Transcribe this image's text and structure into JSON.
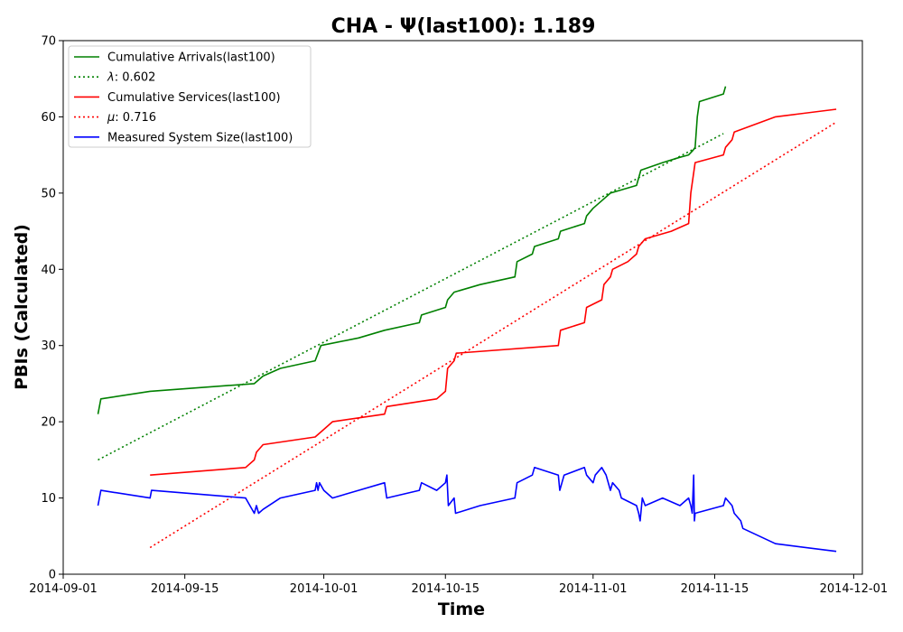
{
  "chart_data": {
    "type": "line",
    "title": "CHA -  Ψ(last100): 1.189",
    "xlabel": "Time",
    "ylabel": "PBIs (Calculated)",
    "xlim": [
      "2014-09-01",
      "2014-12-02"
    ],
    "ylim": [
      0,
      70
    ],
    "x_ticks": [
      "2014-09-01",
      "2014-09-15",
      "2014-10-01",
      "2014-10-15",
      "2014-11-01",
      "2014-11-15",
      "2014-12-01"
    ],
    "y_ticks": [
      0,
      10,
      20,
      30,
      40,
      50,
      60,
      70
    ],
    "grid": false,
    "legend_position": "top-left",
    "series": [
      {
        "name": "Cumulative Arrivals(last100)",
        "color": "#008000",
        "style": "solid",
        "points": [
          [
            "2014-09-05",
            21
          ],
          [
            "2014-09-05T08:00",
            23
          ],
          [
            "2014-09-11",
            24
          ],
          [
            "2014-09-23",
            25
          ],
          [
            "2014-09-24",
            26
          ],
          [
            "2014-09-26",
            27
          ],
          [
            "2014-09-30",
            28
          ],
          [
            "2014-09-30T08:00",
            29
          ],
          [
            "2014-09-30T16:00",
            30
          ],
          [
            "2014-10-05",
            31
          ],
          [
            "2014-10-08",
            32
          ],
          [
            "2014-10-12",
            33
          ],
          [
            "2014-10-12T06:00",
            34
          ],
          [
            "2014-10-15",
            35
          ],
          [
            "2014-10-15T06:00",
            36
          ],
          [
            "2014-10-16",
            37
          ],
          [
            "2014-10-19",
            38
          ],
          [
            "2014-10-23",
            39
          ],
          [
            "2014-10-23T06:00",
            41
          ],
          [
            "2014-10-25",
            42
          ],
          [
            "2014-10-25T06:00",
            43
          ],
          [
            "2014-10-28",
            44
          ],
          [
            "2014-10-28T06:00",
            45
          ],
          [
            "2014-10-31",
            46
          ],
          [
            "2014-10-31T06:00",
            47
          ],
          [
            "2014-11-01",
            48
          ],
          [
            "2014-11-02",
            49
          ],
          [
            "2014-11-03",
            50
          ],
          [
            "2014-11-06",
            51
          ],
          [
            "2014-11-06T06:00",
            52
          ],
          [
            "2014-11-06T12:00",
            53
          ],
          [
            "2014-11-09",
            54
          ],
          [
            "2014-11-11",
            54.7
          ],
          [
            "2014-11-12",
            55
          ],
          [
            "2014-11-12T12:00",
            55.6
          ],
          [
            "2014-11-12T18:00",
            56
          ],
          [
            "2014-11-13",
            60
          ],
          [
            "2014-11-13T06:00",
            62
          ],
          [
            "2014-11-16",
            63
          ],
          [
            "2014-11-16T06:00",
            64
          ]
        ]
      },
      {
        "name": "λ: 0.602",
        "legend_symbol": "λ",
        "legend_value": ": 0.602",
        "color": "#008000",
        "style": "dotted",
        "points": [
          [
            "2014-09-05",
            15
          ],
          [
            "2014-11-16",
            57.8
          ]
        ]
      },
      {
        "name": "Cumulative Services(last100)",
        "color": "#ff0000",
        "style": "solid",
        "points": [
          [
            "2014-09-11",
            13
          ],
          [
            "2014-09-22",
            14
          ],
          [
            "2014-09-23",
            15
          ],
          [
            "2014-09-23T06:00",
            16
          ],
          [
            "2014-09-24",
            17
          ],
          [
            "2014-09-30",
            18
          ],
          [
            "2014-10-01",
            19
          ],
          [
            "2014-10-02",
            20
          ],
          [
            "2014-10-08",
            21
          ],
          [
            "2014-10-08T06:00",
            22
          ],
          [
            "2014-10-14",
            23
          ],
          [
            "2014-10-15",
            24
          ],
          [
            "2014-10-15T06:00",
            27
          ],
          [
            "2014-10-16",
            28
          ],
          [
            "2014-10-16T06:00",
            29
          ],
          [
            "2014-10-28",
            30
          ],
          [
            "2014-10-28T06:00",
            32
          ],
          [
            "2014-10-31",
            33
          ],
          [
            "2014-10-31T06:00",
            35
          ],
          [
            "2014-11-02",
            36
          ],
          [
            "2014-11-02T06:00",
            38
          ],
          [
            "2014-11-03",
            39
          ],
          [
            "2014-11-03T06:00",
            40
          ],
          [
            "2014-11-05",
            41
          ],
          [
            "2014-11-06",
            42
          ],
          [
            "2014-11-06T06:00",
            43
          ],
          [
            "2014-11-07",
            44
          ],
          [
            "2014-11-10",
            45
          ],
          [
            "2014-11-12",
            46
          ],
          [
            "2014-11-12T06:00",
            50
          ],
          [
            "2014-11-12T12:00",
            52
          ],
          [
            "2014-11-12T18:00",
            54
          ],
          [
            "2014-11-16",
            55
          ],
          [
            "2014-11-16T06:00",
            56
          ],
          [
            "2014-11-17",
            57
          ],
          [
            "2014-11-17T06:00",
            58
          ],
          [
            "2014-11-22",
            60
          ],
          [
            "2014-11-29",
            61
          ]
        ]
      },
      {
        "name": "μ: 0.716",
        "legend_symbol": "μ",
        "legend_value": ": 0.716",
        "color": "#ff0000",
        "style": "dotted",
        "points": [
          [
            "2014-09-11",
            3.5
          ],
          [
            "2014-11-29",
            59.3
          ]
        ]
      },
      {
        "name": "Measured System Size(last100)",
        "color": "#0000ff",
        "style": "solid",
        "points": [
          [
            "2014-09-05",
            9
          ],
          [
            "2014-09-05T08:00",
            11
          ],
          [
            "2014-09-11",
            10
          ],
          [
            "2014-09-11T04:00",
            11
          ],
          [
            "2014-09-22",
            10
          ],
          [
            "2014-09-23",
            8
          ],
          [
            "2014-09-23T06:00",
            9
          ],
          [
            "2014-09-23T12:00",
            8
          ],
          [
            "2014-09-24",
            8.5
          ],
          [
            "2014-09-26",
            10
          ],
          [
            "2014-09-30",
            11
          ],
          [
            "2014-09-30T04:00",
            12
          ],
          [
            "2014-09-30T08:00",
            11
          ],
          [
            "2014-09-30T12:00",
            12
          ],
          [
            "2014-10-01",
            11
          ],
          [
            "2014-10-02",
            10
          ],
          [
            "2014-10-05",
            11
          ],
          [
            "2014-10-08",
            12
          ],
          [
            "2014-10-08T06:00",
            10
          ],
          [
            "2014-10-12",
            11
          ],
          [
            "2014-10-12T06:00",
            12
          ],
          [
            "2014-10-14",
            11
          ],
          [
            "2014-10-15",
            12
          ],
          [
            "2014-10-15T04:00",
            13
          ],
          [
            "2014-10-15T08:00",
            9
          ],
          [
            "2014-10-16",
            10
          ],
          [
            "2014-10-16T04:00",
            8
          ],
          [
            "2014-10-19",
            9
          ],
          [
            "2014-10-23",
            10
          ],
          [
            "2014-10-23T06:00",
            12
          ],
          [
            "2014-10-25",
            13
          ],
          [
            "2014-10-25T06:00",
            14
          ],
          [
            "2014-10-28",
            13
          ],
          [
            "2014-10-28T04:00",
            11
          ],
          [
            "2014-10-28T10:00",
            12
          ],
          [
            "2014-10-28T16:00",
            13
          ],
          [
            "2014-10-31",
            14
          ],
          [
            "2014-10-31T06:00",
            13
          ],
          [
            "2014-11-01",
            12
          ],
          [
            "2014-11-01T06:00",
            13
          ],
          [
            "2014-11-02",
            14
          ],
          [
            "2014-11-02T12:00",
            13
          ],
          [
            "2014-11-03",
            11
          ],
          [
            "2014-11-03T06:00",
            12
          ],
          [
            "2014-11-04",
            11
          ],
          [
            "2014-11-04T06:00",
            10
          ],
          [
            "2014-11-06",
            9
          ],
          [
            "2014-11-06T06:00",
            8
          ],
          [
            "2014-11-06T10:00",
            7
          ],
          [
            "2014-11-06T16:00",
            10
          ],
          [
            "2014-11-07",
            9
          ],
          [
            "2014-11-09",
            10
          ],
          [
            "2014-11-11",
            9
          ],
          [
            "2014-11-12",
            10
          ],
          [
            "2014-11-12T06:00",
            9
          ],
          [
            "2014-11-12T10:00",
            8
          ],
          [
            "2014-11-12T14:00",
            13
          ],
          [
            "2014-11-12T16:00",
            7
          ],
          [
            "2014-11-12T18:00",
            8
          ],
          [
            "2014-11-16",
            9
          ],
          [
            "2014-11-16T06:00",
            10
          ],
          [
            "2014-11-17",
            9
          ],
          [
            "2014-11-17T06:00",
            8
          ],
          [
            "2014-11-18",
            7
          ],
          [
            "2014-11-18T06:00",
            6
          ],
          [
            "2014-11-22",
            4
          ],
          [
            "2014-11-29",
            3
          ]
        ]
      }
    ]
  }
}
